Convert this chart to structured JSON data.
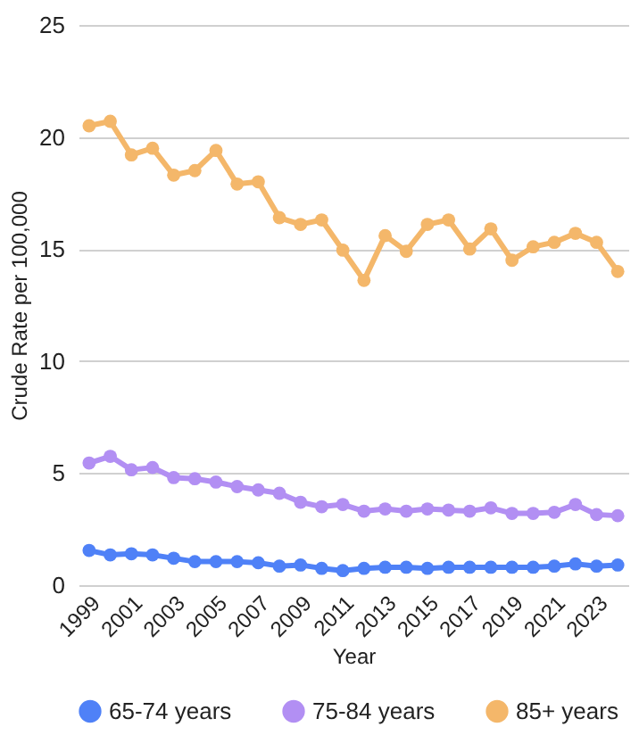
{
  "chart_data": {
    "type": "line",
    "xlabel": "Year",
    "ylabel": "Crude Rate per 100,000",
    "x": [
      1999,
      2000,
      2001,
      2002,
      2003,
      2004,
      2005,
      2006,
      2007,
      2008,
      2009,
      2010,
      2011,
      2012,
      2013,
      2014,
      2015,
      2016,
      2017,
      2018,
      2019,
      2020,
      2021,
      2022,
      2023,
      2024
    ],
    "xlim": [
      1998.5,
      2024.5
    ],
    "xticks": [
      1999,
      2001,
      2003,
      2005,
      2007,
      2009,
      2011,
      2013,
      2015,
      2017,
      2019,
      2021,
      2023
    ],
    "series": [
      {
        "name": "65-74 years",
        "color": "#4f81f7",
        "values": [
          1.55,
          1.35,
          1.4,
          1.35,
          1.2,
          1.05,
          1.05,
          1.05,
          1.0,
          0.85,
          0.9,
          0.75,
          0.65,
          0.75,
          0.8,
          0.8,
          0.75,
          0.8,
          0.8,
          0.8,
          0.8,
          0.8,
          0.85,
          0.95,
          0.85,
          0.9
        ]
      },
      {
        "name": "75-84 years",
        "color": "#b28ff3",
        "values": [
          5.45,
          5.75,
          5.15,
          5.25,
          4.8,
          4.75,
          4.6,
          4.4,
          4.25,
          4.1,
          3.7,
          3.5,
          3.6,
          3.3,
          3.4,
          3.3,
          3.4,
          3.35,
          3.3,
          3.45,
          3.2,
          3.2,
          3.25,
          3.6,
          3.15,
          3.1
        ]
      },
      {
        "name": "85+ years",
        "color": "#f4b76a",
        "values": [
          20.5,
          20.7,
          19.2,
          19.5,
          18.3,
          18.5,
          19.4,
          17.9,
          18.0,
          16.4,
          16.1,
          16.3,
          14.95,
          13.6,
          15.6,
          14.9,
          16.1,
          16.3,
          15.0,
          15.9,
          14.5,
          15.1,
          15.3,
          15.7,
          15.3,
          14.0
        ]
      }
    ],
    "ylim": [
      0,
      25
    ],
    "yticks": [
      0,
      5,
      10,
      15,
      20,
      25
    ],
    "grid": "y",
    "legend": "bottom",
    "marker": "circle",
    "line_style": "solid"
  }
}
